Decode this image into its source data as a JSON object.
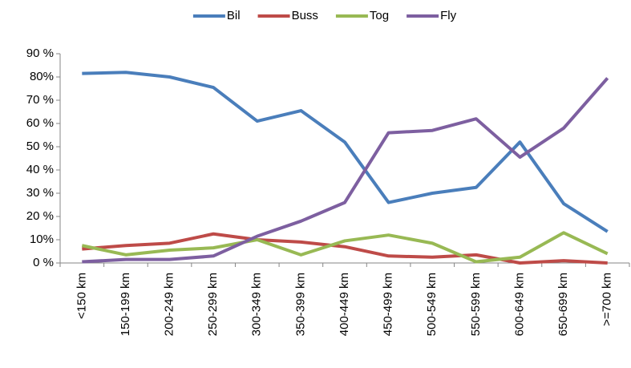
{
  "chart_data": {
    "type": "line",
    "categories": [
      "<150 km",
      "150-199 km",
      "200-249 km",
      "250-299 km",
      "300-349 km",
      "350-399 km",
      "400-449 km",
      "450-499 km",
      "500-549 km",
      "550-599 km",
      "600-649 km",
      "650-699 km",
      ">=700 km"
    ],
    "series": [
      {
        "name": "Bil",
        "color": "#4a7ebb",
        "values": [
          81.5,
          82,
          80,
          75.5,
          61,
          65.5,
          52,
          26,
          30,
          32.5,
          52,
          25.5,
          13.5
        ]
      },
      {
        "name": "Buss",
        "color": "#be4b48",
        "values": [
          6,
          7.5,
          8.5,
          12.5,
          10,
          9,
          7,
          3,
          2.5,
          3.5,
          0,
          1,
          0
        ]
      },
      {
        "name": "Tog",
        "color": "#98b954",
        "values": [
          7.5,
          3.5,
          5.5,
          6.5,
          10,
          3.5,
          9.5,
          12,
          8.5,
          0.5,
          2.5,
          13,
          4
        ]
      },
      {
        "name": "Fly",
        "color": "#7d5fa0",
        "values": [
          0.5,
          1.5,
          1.5,
          3,
          11.5,
          18,
          26,
          56,
          57,
          62,
          45.5,
          58,
          79.5
        ]
      }
    ],
    "ylim": [
      0,
      90
    ],
    "yticks": [
      {
        "value": 0,
        "label": "0 %"
      },
      {
        "value": 10,
        "label": "10%"
      },
      {
        "value": 20,
        "label": "20 %"
      },
      {
        "value": 30,
        "label": "30 %"
      },
      {
        "value": 40,
        "label": "40 %"
      },
      {
        "value": 50,
        "label": "50 %"
      },
      {
        "value": 60,
        "label": "60 %"
      },
      {
        "value": 70,
        "label": "70 %"
      },
      {
        "value": 80,
        "label": "80%"
      },
      {
        "value": 90,
        "label": "90 %"
      }
    ],
    "legend": "top"
  }
}
